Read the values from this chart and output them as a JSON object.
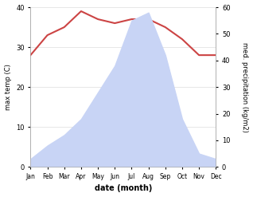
{
  "months": [
    "Jan",
    "Feb",
    "Mar",
    "Apr",
    "May",
    "Jun",
    "Jul",
    "Aug",
    "Sep",
    "Oct",
    "Nov",
    "Dec"
  ],
  "temp_data": [
    28,
    33,
    35,
    39,
    37,
    36,
    37,
    37,
    35,
    32,
    28,
    28
  ],
  "precip_data": [
    3,
    8,
    12,
    18,
    28,
    38,
    55,
    58,
    42,
    18,
    5,
    3
  ],
  "temp_color": "#cc4444",
  "precip_fill_color": "#c8d4f5",
  "precip_line_color": "#c8d4f5",
  "temp_ylim": [
    0,
    40
  ],
  "precip_ylim": [
    0,
    60
  ],
  "temp_yticks": [
    0,
    10,
    20,
    30,
    40
  ],
  "precip_yticks": [
    0,
    10,
    20,
    30,
    40,
    50,
    60
  ],
  "ylabel_left": "max temp (C)",
  "ylabel_right": "med. precipitation (kg/m2)",
  "xlabel": "date (month)",
  "background_color": "#ffffff",
  "grid_color": "#dddddd"
}
